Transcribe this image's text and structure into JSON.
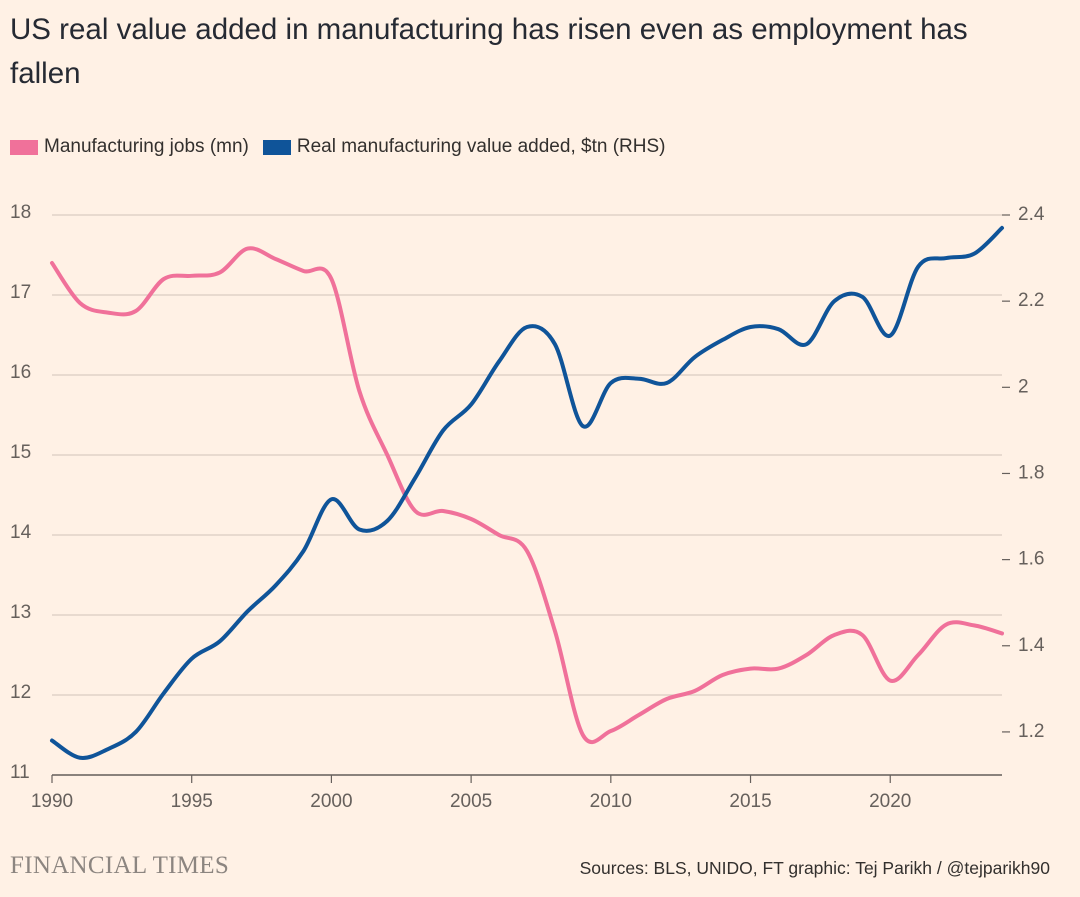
{
  "chart_data": {
    "type": "line",
    "title": "US real value added in manufacturing has risen even as employment has fallen",
    "x": [
      1990,
      1991,
      1992,
      1993,
      1994,
      1995,
      1996,
      1997,
      1998,
      1999,
      2000,
      2001,
      2002,
      2003,
      2004,
      2005,
      2006,
      2007,
      2008,
      2009,
      2010,
      2011,
      2012,
      2013,
      2014,
      2015,
      2016,
      2017,
      2018,
      2019,
      2020,
      2021,
      2022,
      2023,
      2024
    ],
    "series": [
      {
        "name": "Manufacturing jobs (mn)",
        "color": "#f0719a",
        "values": [
          17.4,
          16.9,
          16.78,
          16.8,
          17.2,
          17.24,
          17.28,
          17.58,
          17.45,
          17.3,
          17.2,
          15.8,
          15.0,
          14.3,
          14.3,
          14.2,
          14.0,
          13.8,
          12.8,
          11.5,
          11.55,
          11.75,
          11.95,
          12.05,
          12.25,
          12.33,
          12.33,
          12.5,
          12.75,
          12.75,
          12.18,
          12.5,
          12.88,
          12.87,
          12.77
        ]
      },
      {
        "name": "Real manufacturing value added, $tn (RHS)",
        "color": "#0f5499",
        "axis": "y2",
        "values": [
          1.18,
          1.14,
          1.16,
          1.2,
          1.29,
          1.37,
          1.41,
          1.48,
          1.54,
          1.62,
          1.74,
          1.67,
          1.69,
          1.79,
          1.9,
          1.96,
          2.06,
          2.14,
          2.1,
          1.91,
          2.01,
          2.02,
          2.01,
          2.07,
          2.11,
          2.14,
          2.135,
          2.1,
          2.2,
          2.21,
          2.12,
          2.28,
          2.3,
          2.31,
          2.37
        ]
      }
    ],
    "xlim": [
      1990,
      2024
    ],
    "xticks": [
      1990,
      1995,
      2000,
      2005,
      2010,
      2015,
      2020
    ],
    "ylim": [
      11,
      18
    ],
    "yticks": [
      11,
      12,
      13,
      14,
      15,
      16,
      17,
      18
    ],
    "y2lim": [
      1.1,
      2.4
    ],
    "y2ticks": [
      1.2,
      1.4,
      1.6,
      1.8,
      2,
      2.2,
      2.4
    ],
    "grid": true,
    "brand": "FINANCIAL TIMES",
    "source": "Sources: BLS, UNIDO, FT graphic: Tej Parikh / @tejparikh90"
  }
}
